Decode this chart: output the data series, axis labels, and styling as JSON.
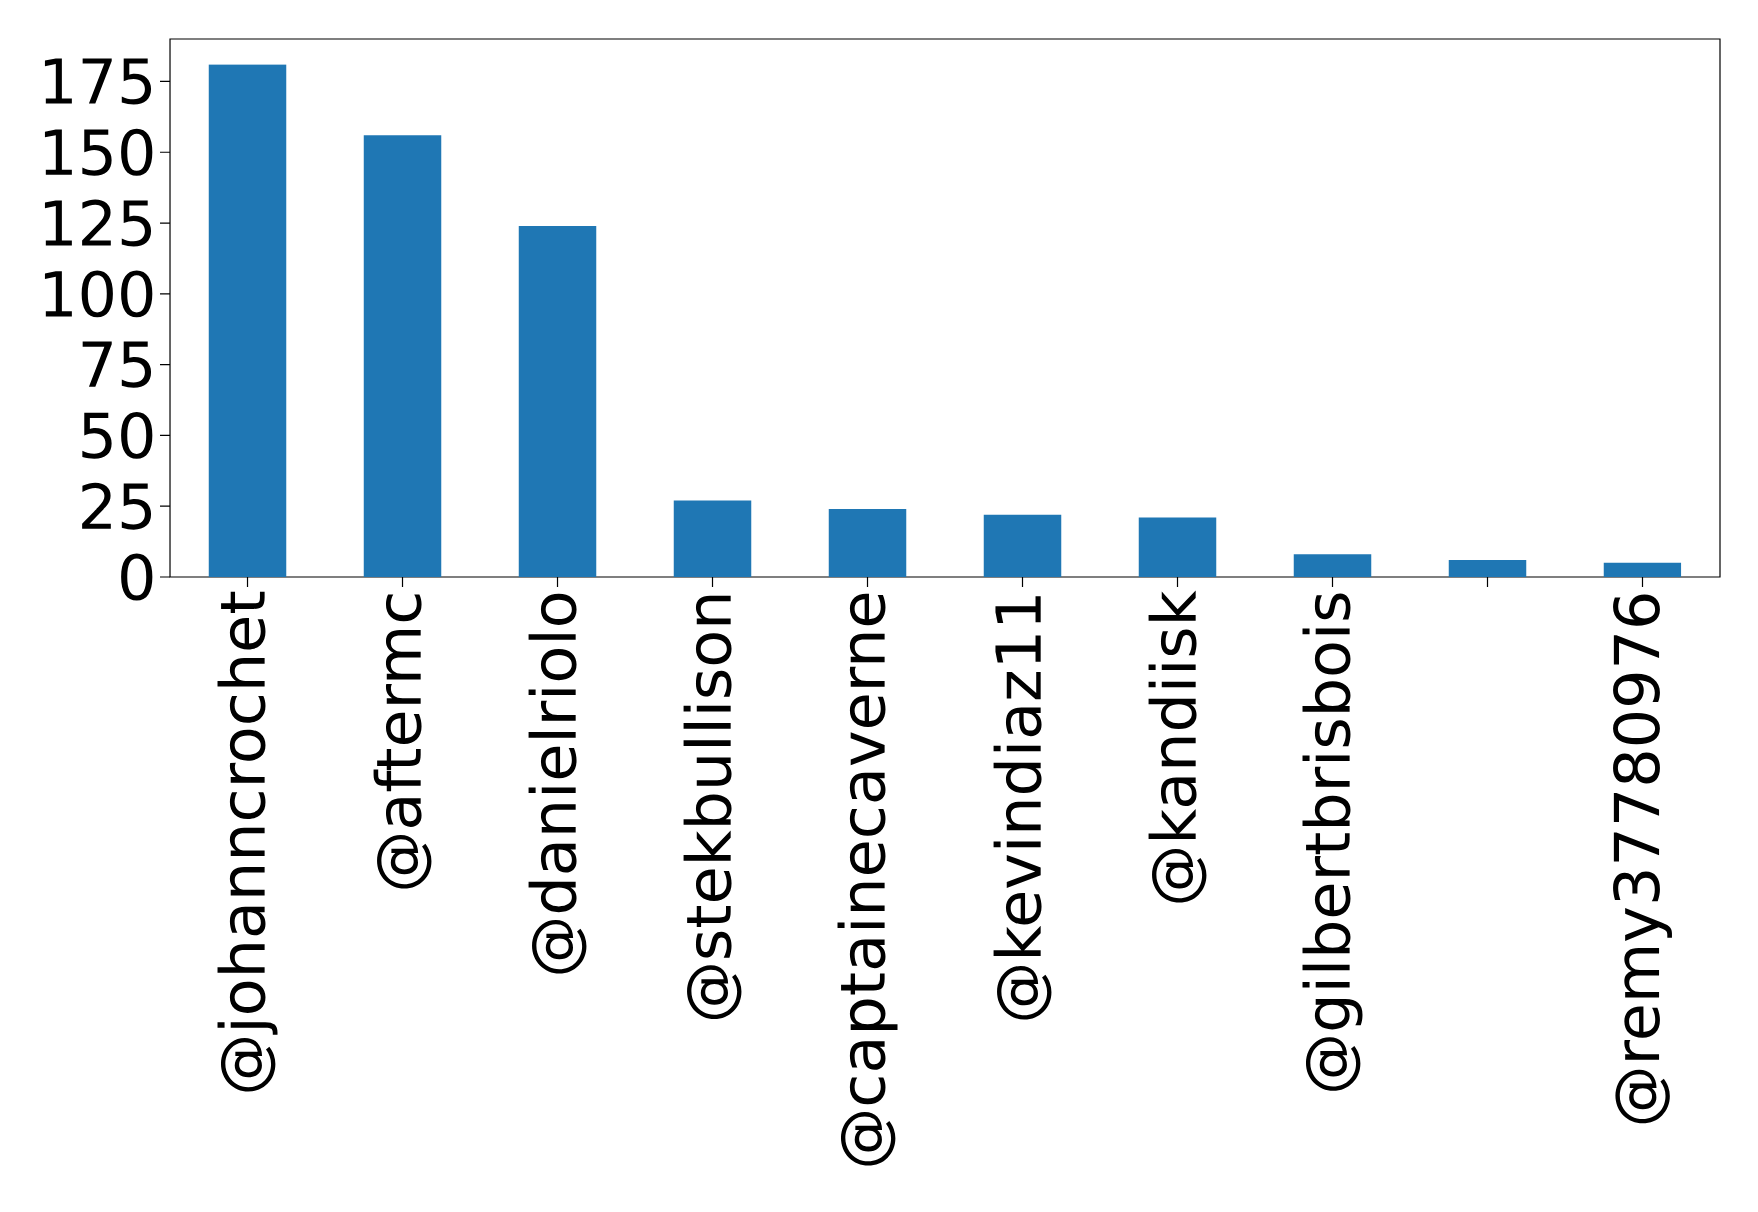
{
  "chart_data": {
    "type": "bar",
    "categories": [
      "@johanncrochet",
      "@aftermc",
      "@danielriolo",
      "@stekbullison",
      "@captainecaverne",
      "@kevindiaz11",
      "@kandiisk",
      "@gilbertbrisbois",
      null,
      "@remy37780976"
    ],
    "values": [
      181,
      156,
      124,
      27,
      24,
      22,
      21,
      8,
      6,
      5
    ],
    "color": "#1f77b4",
    "ylim": [
      0,
      190
    ],
    "yticks": [
      0,
      25,
      50,
      75,
      100,
      125,
      150,
      175
    ],
    "grid": false
  }
}
